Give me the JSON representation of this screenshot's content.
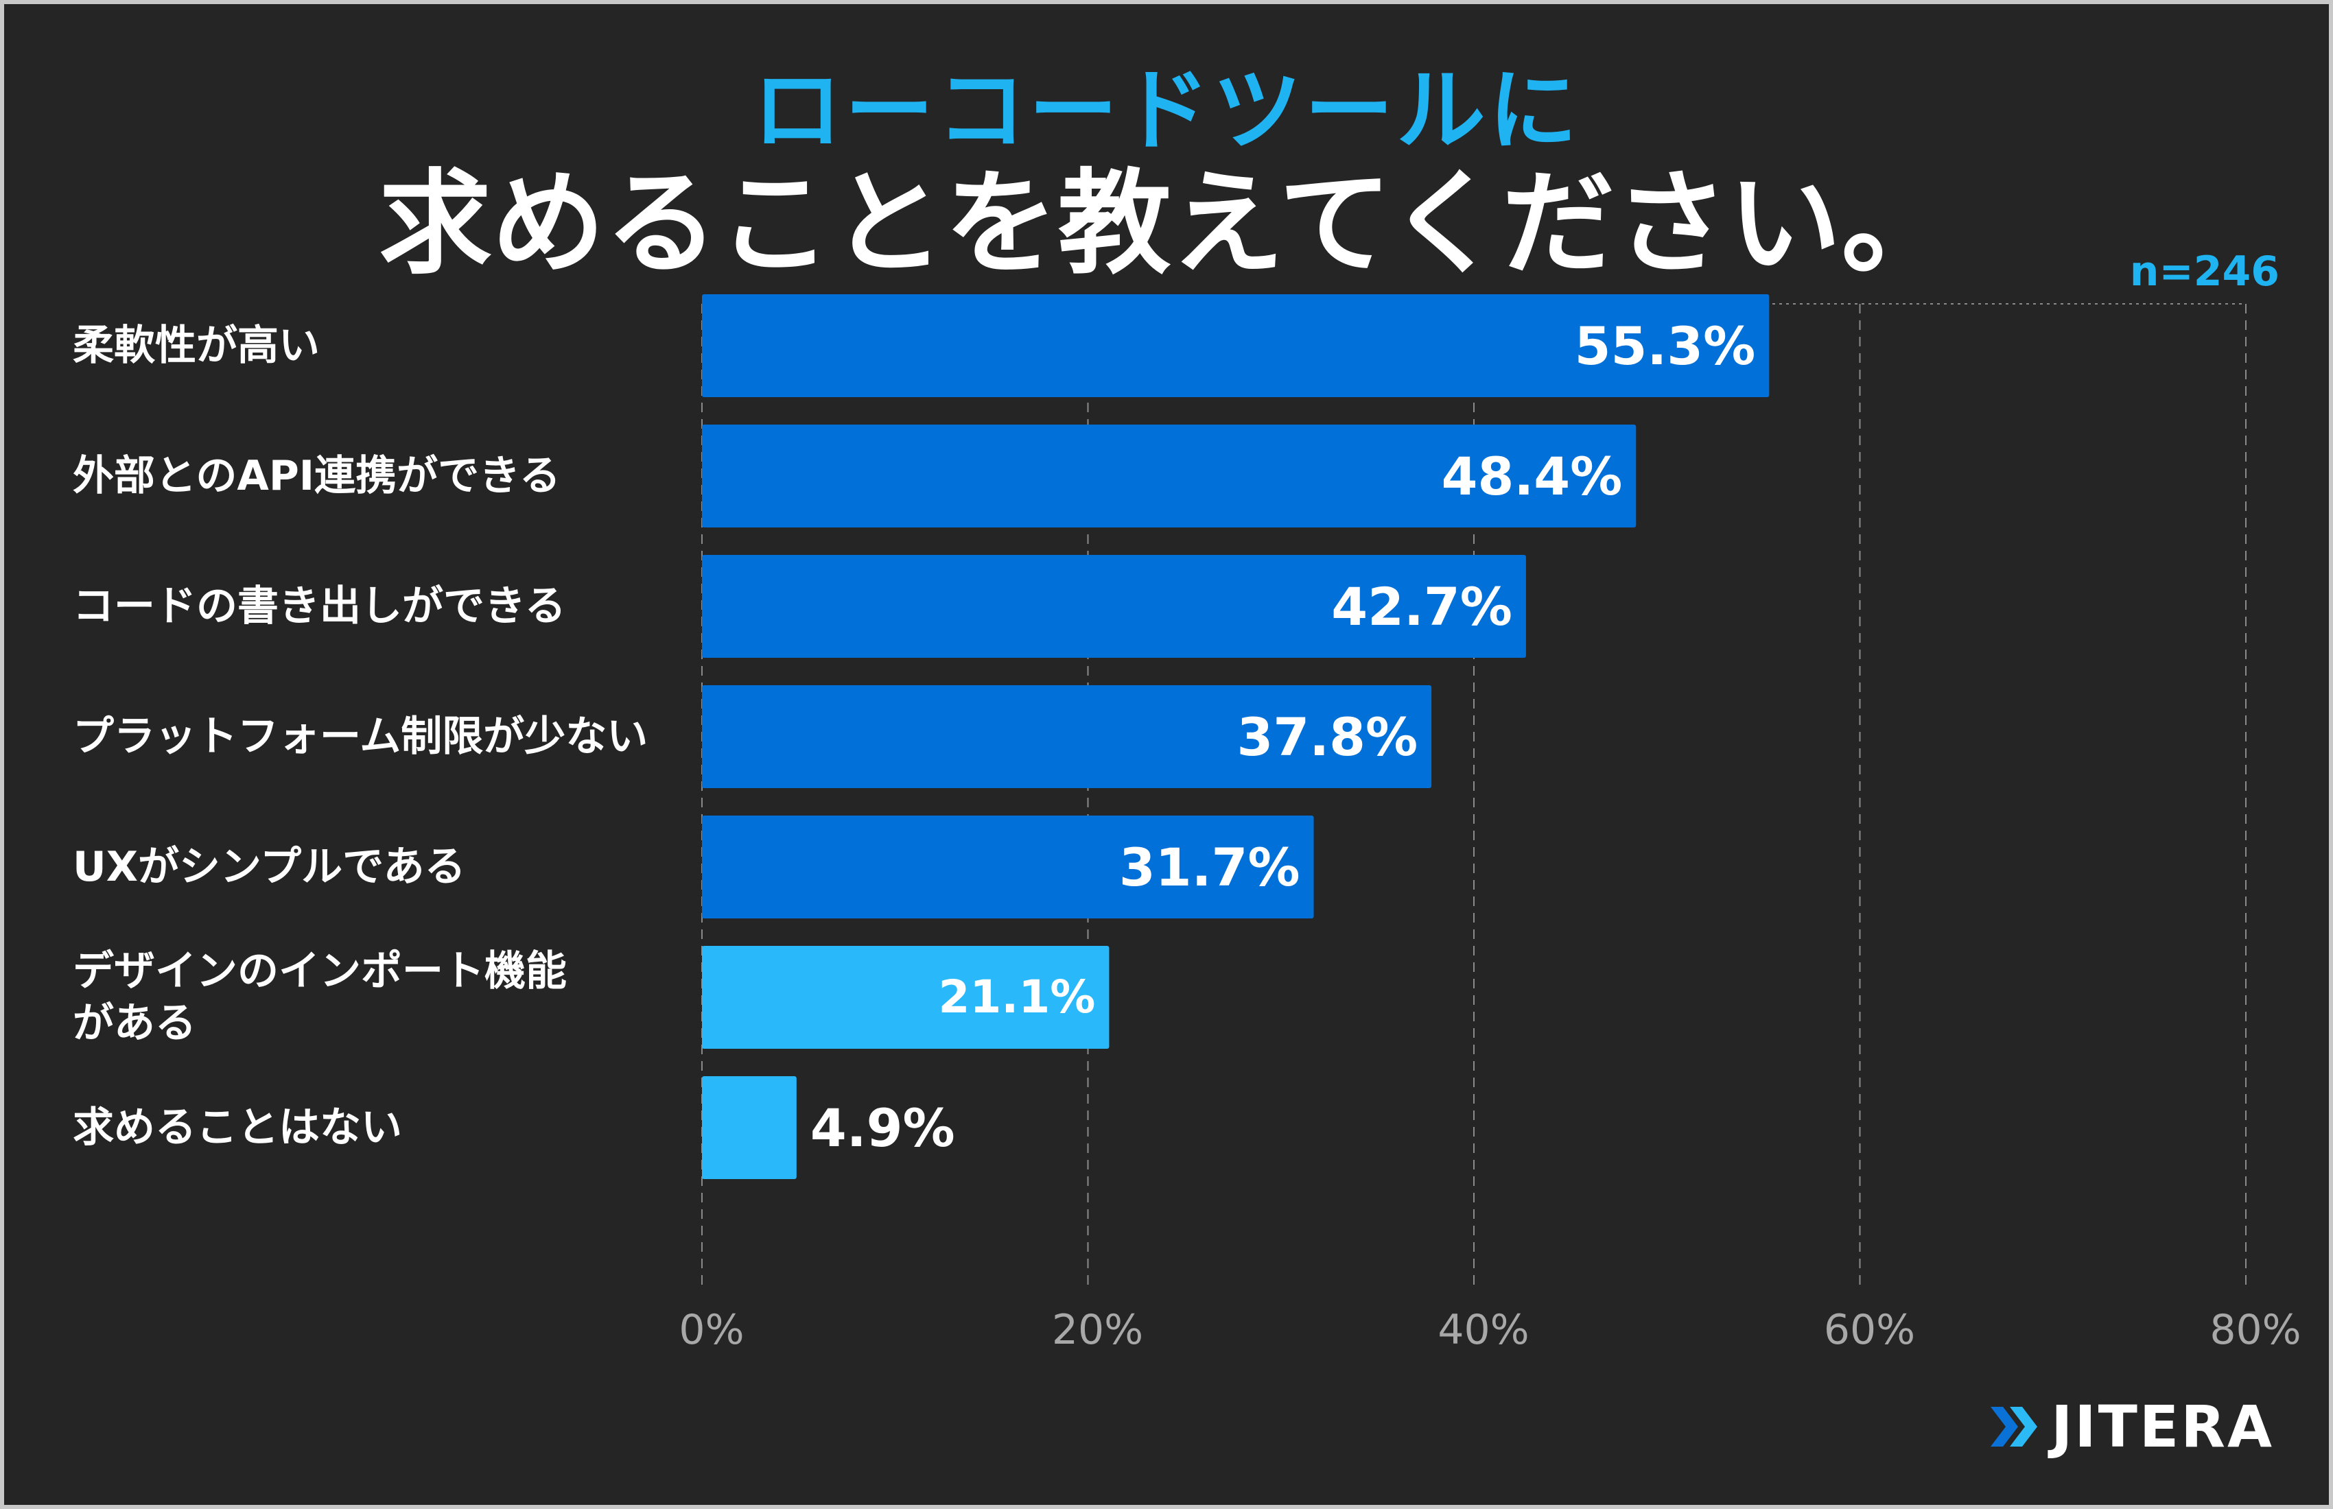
{
  "title": {
    "line1": "ローコードツールに",
    "line2": "求めることを教えてください。"
  },
  "sample_size": "n=246",
  "brand": {
    "name": "JITERA",
    "icon": "double-chevron-right-icon"
  },
  "colors": {
    "background": "#252525",
    "bar_primary": "#0270d9",
    "bar_secondary": "#29b9fb",
    "accent": "#1fb3f2",
    "grid": "#8a8a8a",
    "tick_text": "#a8a8a8"
  },
  "chart_data": {
    "type": "bar",
    "orientation": "horizontal",
    "title": "ローコードツールに求めることを教えてください。",
    "categories": [
      "柔軟性が高い",
      "外部とのAPI連携ができる",
      "コードの書き出しができる",
      "プラットフォーム制限が少ない",
      "UXがシンプルである",
      "デザインのインポート機能\nがある",
      "求めることはない"
    ],
    "values": [
      55.3,
      48.4,
      42.7,
      37.8,
      31.7,
      21.1,
      4.9
    ],
    "value_labels": [
      "55.3%",
      "48.4%",
      "42.7%",
      "37.8%",
      "31.7%",
      "21.1%",
      "4.9%"
    ],
    "xlim": [
      0,
      80
    ],
    "xticks": [
      0,
      20,
      40,
      60,
      80
    ],
    "xtick_labels": [
      "0%",
      "20%",
      "40%",
      "60%",
      "80%"
    ],
    "xlabel": "",
    "ylabel": "",
    "grid": true,
    "legend": "none"
  }
}
